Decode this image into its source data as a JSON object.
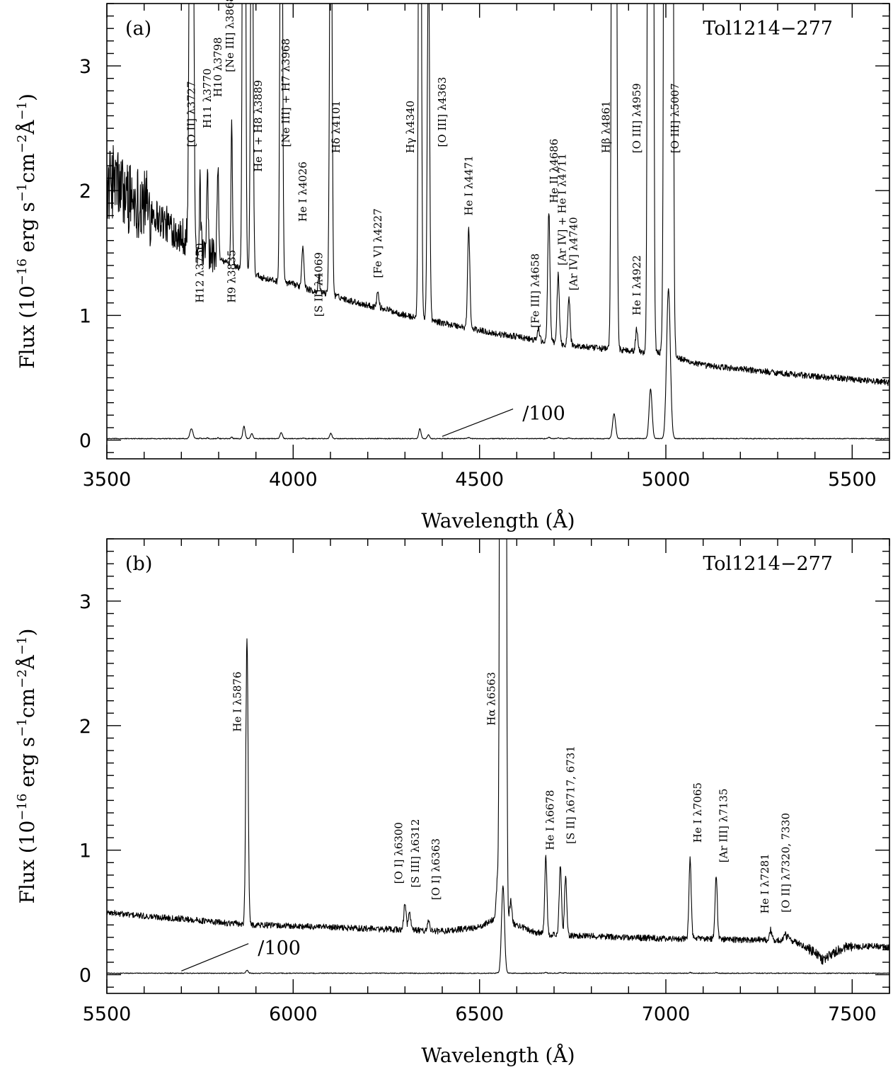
{
  "figure": {
    "xlabel": "Wavelength (Å)",
    "ylabel_parts": [
      "Flux (10",
      "−16",
      " erg s",
      "−1",
      "cm",
      "−2",
      "Å",
      "−1",
      ")"
    ]
  },
  "chart_data": [
    {
      "type": "line",
      "panel": "(a)",
      "object": "Tol1214−277",
      "xlim": [
        3500,
        5600
      ],
      "ylim": [
        -0.15,
        3.5
      ],
      "xticks": [
        3500,
        4000,
        4500,
        5000,
        5500
      ],
      "yticks": [
        0,
        1,
        2,
        3
      ],
      "scale_note": "/100",
      "continuum": [
        [
          3500,
          2.0
        ],
        [
          3520,
          2.1
        ],
        [
          3540,
          2.0
        ],
        [
          3560,
          1.95
        ],
        [
          3600,
          1.9
        ],
        [
          3650,
          1.75
        ],
        [
          3700,
          1.65
        ],
        [
          3720,
          1.6
        ],
        [
          3760,
          1.5
        ],
        [
          3800,
          1.45
        ],
        [
          3840,
          1.4
        ],
        [
          3880,
          1.35
        ],
        [
          3920,
          1.3
        ],
        [
          3960,
          1.27
        ],
        [
          4000,
          1.25
        ],
        [
          4050,
          1.2
        ],
        [
          4100,
          1.17
        ],
        [
          4150,
          1.12
        ],
        [
          4200,
          1.08
        ],
        [
          4250,
          1.05
        ],
        [
          4300,
          1.0
        ],
        [
          4350,
          0.97
        ],
        [
          4400,
          0.94
        ],
        [
          4450,
          0.91
        ],
        [
          4500,
          0.88
        ],
        [
          4550,
          0.85
        ],
        [
          4600,
          0.83
        ],
        [
          4650,
          0.8
        ],
        [
          4700,
          0.78
        ],
        [
          4750,
          0.76
        ],
        [
          4800,
          0.74
        ],
        [
          4850,
          0.73
        ],
        [
          4900,
          0.72
        ],
        [
          4950,
          0.7
        ],
        [
          5000,
          0.7
        ],
        [
          5050,
          0.64
        ],
        [
          5100,
          0.6
        ],
        [
          5200,
          0.57
        ],
        [
          5300,
          0.54
        ],
        [
          5400,
          0.51
        ],
        [
          5500,
          0.49
        ],
        [
          5600,
          0.46
        ]
      ],
      "lines": [
        {
          "w": 3727,
          "h": 8.0,
          "s": 4
        },
        {
          "w": 3750,
          "h": 0.5,
          "s": 2
        },
        {
          "w": 3770,
          "h": 0.6,
          "s": 2
        },
        {
          "w": 3798,
          "h": 0.8,
          "s": 2
        },
        {
          "w": 3835,
          "h": 1.15,
          "s": 2
        },
        {
          "w": 3868,
          "h": 10.0,
          "s": 3
        },
        {
          "w": 3889,
          "h": 4.0,
          "s": 3
        },
        {
          "w": 3968,
          "h": 5.0,
          "s": 3
        },
        {
          "w": 4026,
          "h": 0.33,
          "s": 3
        },
        {
          "w": 4069,
          "h": 0.12,
          "s": 2
        },
        {
          "w": 4101,
          "h": 4.2,
          "s": 3
        },
        {
          "w": 4227,
          "h": 0.12,
          "s": 3
        },
        {
          "w": 4340,
          "h": 8.0,
          "s": 3
        },
        {
          "w": 4363,
          "h": 3.0,
          "s": 3
        },
        {
          "w": 4471,
          "h": 0.8,
          "s": 3
        },
        {
          "w": 4658,
          "h": 0.1,
          "s": 3
        },
        {
          "w": 4686,
          "h": 1.05,
          "s": 3
        },
        {
          "w": 4711,
          "h": 0.55,
          "s": 3
        },
        {
          "w": 4740,
          "h": 0.38,
          "s": 3
        },
        {
          "w": 4861,
          "h": 20.0,
          "s": 4
        },
        {
          "w": 4922,
          "h": 0.18,
          "s": 3
        },
        {
          "w": 4959,
          "h": 40.0,
          "s": 4
        },
        {
          "w": 5007,
          "h": 120.0,
          "s": 5
        }
      ],
      "line_labels": [
        {
          "text": "[O II] λ3727",
          "w": 3727,
          "y": 2.35,
          "side": "left"
        },
        {
          "text": "H12 λ3750",
          "w": 3750,
          "y": 1.1,
          "side": "left"
        },
        {
          "text": "H11 λ3770",
          "w": 3770,
          "y": 2.5,
          "side": "left"
        },
        {
          "text": "H10 λ3798",
          "w": 3798,
          "y": 2.75,
          "side": "left"
        },
        {
          "text": "[Ne III] λ3868",
          "w": 3830,
          "y": 2.95,
          "side": "left"
        },
        {
          "text": "H9 λ3835",
          "w": 3835,
          "y": 1.1,
          "side": "left"
        },
        {
          "text": "He I + H8 λ3889",
          "w": 3906,
          "y": 2.15,
          "side": "left"
        },
        {
          "text": "[Ne III] + H7 λ3968",
          "w": 3980,
          "y": 2.35,
          "side": "left"
        },
        {
          "text": "He I λ4026",
          "w": 4026,
          "y": 1.75,
          "side": "left"
        },
        {
          "text": "[S II] λ4069",
          "w": 4069,
          "y": 0.99,
          "side": "left"
        },
        {
          "text": "Hδ λ4101",
          "w": 4115,
          "y": 2.3,
          "side": "left"
        },
        {
          "text": "[Fe V] λ4227",
          "w": 4227,
          "y": 1.3,
          "side": "left"
        },
        {
          "text": "Hγ λ4340",
          "w": 4315,
          "y": 2.3,
          "side": "left"
        },
        {
          "text": "[O III] λ4363",
          "w": 4400,
          "y": 2.35,
          "side": "left"
        },
        {
          "text": "He I λ4471",
          "w": 4471,
          "y": 1.8,
          "side": "left"
        },
        {
          "text": "[Fe III] λ4658",
          "w": 4650,
          "y": 0.9,
          "side": "left"
        },
        {
          "text": "He II λ4686",
          "w": 4700,
          "y": 1.9,
          "side": "left"
        },
        {
          "text": "[Ar IV] + He I λ4711",
          "w": 4722,
          "y": 1.4,
          "side": "left"
        },
        {
          "text": "[Ar IV] λ4740",
          "w": 4752,
          "y": 1.2,
          "side": "left"
        },
        {
          "text": "Hβ λ4861",
          "w": 4840,
          "y": 2.3,
          "side": "left"
        },
        {
          "text": "[O III] λ4959",
          "w": 4922,
          "y": 2.3,
          "side": "left"
        },
        {
          "text": "He I λ4922",
          "w": 4922,
          "y": 1.0,
          "side": "left"
        },
        {
          "text": "[O III] λ5007",
          "w": 5025,
          "y": 2.3,
          "side": "left"
        }
      ],
      "scale_pointer": {
        "from": [
          4400,
          0.03
        ],
        "to": [
          4590,
          0.25
        ],
        "label_at": [
          4615,
          0.22
        ]
      }
    },
    {
      "type": "line",
      "panel": "(b)",
      "object": "Tol1214−277",
      "xlim": [
        5500,
        7600
      ],
      "ylim": [
        -0.15,
        3.5
      ],
      "xticks": [
        5500,
        6000,
        6500,
        7000,
        7500
      ],
      "yticks": [
        0,
        1,
        2,
        3
      ],
      "scale_note": "/100",
      "continuum": [
        [
          5500,
          0.5
        ],
        [
          5600,
          0.47
        ],
        [
          5700,
          0.45
        ],
        [
          5800,
          0.42
        ],
        [
          5900,
          0.4
        ],
        [
          6000,
          0.39
        ],
        [
          6100,
          0.38
        ],
        [
          6200,
          0.37
        ],
        [
          6300,
          0.36
        ],
        [
          6400,
          0.35
        ],
        [
          6500,
          0.38
        ],
        [
          6540,
          0.45
        ],
        [
          6600,
          0.4
        ],
        [
          6650,
          0.34
        ],
        [
          6700,
          0.32
        ],
        [
          6750,
          0.31
        ],
        [
          6800,
          0.31
        ],
        [
          6900,
          0.3
        ],
        [
          7000,
          0.29
        ],
        [
          7100,
          0.29
        ],
        [
          7200,
          0.28
        ],
        [
          7300,
          0.28
        ],
        [
          7350,
          0.26
        ],
        [
          7400,
          0.18
        ],
        [
          7420,
          0.12
        ],
        [
          7440,
          0.16
        ],
        [
          7480,
          0.22
        ],
        [
          7550,
          0.23
        ],
        [
          7600,
          0.22
        ]
      ],
      "lines": [
        {
          "w": 5876,
          "h": 2.3,
          "s": 3
        },
        {
          "w": 6300,
          "h": 0.22,
          "s": 3
        },
        {
          "w": 6312,
          "h": 0.15,
          "s": 3
        },
        {
          "w": 6363,
          "h": 0.08,
          "s": 3
        },
        {
          "w": 6548,
          "h": 0.3,
          "s": 3
        },
        {
          "w": 6563,
          "h": 70.0,
          "s": 4
        },
        {
          "w": 6584,
          "h": 0.18,
          "s": 3
        },
        {
          "w": 6678,
          "h": 0.62,
          "s": 3
        },
        {
          "w": 6717,
          "h": 0.57,
          "s": 3
        },
        {
          "w": 6731,
          "h": 0.47,
          "s": 3
        },
        {
          "w": 7065,
          "h": 0.64,
          "s": 3
        },
        {
          "w": 7135,
          "h": 0.5,
          "s": 3
        },
        {
          "w": 7281,
          "h": 0.08,
          "s": 3
        },
        {
          "w": 7320,
          "h": 0.06,
          "s": 3
        },
        {
          "w": 7330,
          "h": 0.05,
          "s": 3
        }
      ],
      "line_labels": [
        {
          "text": "He I λ5876",
          "w": 5850,
          "y": 1.95,
          "side": "left"
        },
        {
          "text": "[O I] λ6300",
          "w": 6283,
          "y": 0.73,
          "side": "left"
        },
        {
          "text": "[S III] λ6312",
          "w": 6328,
          "y": 0.7,
          "side": "left"
        },
        {
          "text": "[O I] λ6363",
          "w": 6383,
          "y": 0.6,
          "side": "left"
        },
        {
          "text": "Hα λ6563",
          "w": 6532,
          "y": 2.0,
          "side": "left"
        },
        {
          "text": "He I λ6678",
          "w": 6690,
          "y": 1.0,
          "side": "left"
        },
        {
          "text": "[S II] λ6717, 6731",
          "w": 6745,
          "y": 1.05,
          "side": "left"
        },
        {
          "text": "He I λ7065",
          "w": 7085,
          "y": 1.06,
          "side": "left"
        },
        {
          "text": "[Ar III] λ7135",
          "w": 7155,
          "y": 0.9,
          "side": "left"
        },
        {
          "text": "He I λ7281",
          "w": 7266,
          "y": 0.49,
          "side": "left"
        },
        {
          "text": "[O II] λ7320, 7330",
          "w": 7322,
          "y": 0.5,
          "side": "left"
        }
      ],
      "scale_pointer": {
        "from": [
          5700,
          0.03
        ],
        "to": [
          5880,
          0.25
        ],
        "label_at": [
          5905,
          0.22
        ]
      }
    }
  ]
}
